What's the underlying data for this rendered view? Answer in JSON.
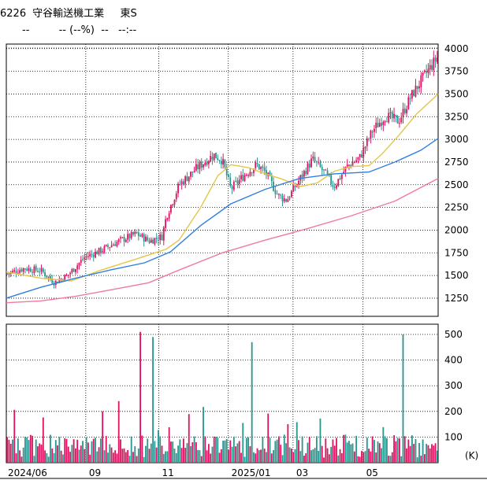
{
  "header": {
    "code": "6226",
    "name": "守谷輸送機工業",
    "market": "東S",
    "price": "--",
    "change": "-- (--%)",
    "volume_text": "--",
    "time": "--:--"
  },
  "chart_data": [
    {
      "type": "candlestick",
      "panel": "price",
      "ylim": [
        1050,
        4050
      ],
      "yticks": [
        1250,
        1500,
        1750,
        2000,
        2250,
        2500,
        2750,
        3000,
        3250,
        3500,
        3750,
        4000
      ],
      "x_categories": [
        "2024/06",
        "09",
        "11",
        "2025/01",
        "03",
        "05"
      ],
      "x_period": [
        "2024/06",
        "2025/06"
      ],
      "up_color": "#dd1560",
      "down_color": "#2a9690",
      "series": [
        {
          "name": "",
          "color": "#e4c64a",
          "points": [
            [
              0,
              1540
            ],
            [
              0.08,
              1470
            ],
            [
              0.15,
              1440
            ],
            [
              0.22,
              1560
            ],
            [
              0.3,
              1680
            ],
            [
              0.37,
              1790
            ],
            [
              0.4,
              1890
            ],
            [
              0.45,
              2250
            ],
            [
              0.49,
              2600
            ],
            [
              0.52,
              2720
            ],
            [
              0.56,
              2690
            ],
            [
              0.6,
              2620
            ],
            [
              0.64,
              2560
            ],
            [
              0.68,
              2480
            ],
            [
              0.72,
              2520
            ],
            [
              0.76,
              2650
            ],
            [
              0.8,
              2700
            ],
            [
              0.84,
              2710
            ],
            [
              0.87,
              2840
            ],
            [
              0.91,
              3050
            ],
            [
              0.95,
              3280
            ],
            [
              1.0,
              3500
            ]
          ]
        },
        {
          "name": "",
          "color": "#2f7fe0",
          "points": [
            [
              0,
              1250
            ],
            [
              0.08,
              1370
            ],
            [
              0.16,
              1470
            ],
            [
              0.24,
              1560
            ],
            [
              0.32,
              1640
            ],
            [
              0.38,
              1760
            ],
            [
              0.45,
              2050
            ],
            [
              0.52,
              2290
            ],
            [
              0.6,
              2450
            ],
            [
              0.68,
              2570
            ],
            [
              0.76,
              2620
            ],
            [
              0.84,
              2640
            ],
            [
              0.9,
              2750
            ],
            [
              0.96,
              2880
            ],
            [
              1.0,
              3010
            ]
          ]
        },
        {
          "name": "",
          "color": "#f07aa0",
          "points": [
            [
              0,
              1200
            ],
            [
              0.08,
              1220
            ],
            [
              0.16,
              1270
            ],
            [
              0.24,
              1340
            ],
            [
              0.33,
              1420
            ],
            [
              0.4,
              1560
            ],
            [
              0.5,
              1750
            ],
            [
              0.6,
              1890
            ],
            [
              0.7,
              2020
            ],
            [
              0.8,
              2160
            ],
            [
              0.9,
              2320
            ],
            [
              1.0,
              2570
            ]
          ]
        }
      ],
      "candles_anchor": [
        [
          0,
          1520
        ],
        [
          0.04,
          1580
        ],
        [
          0.08,
          1550
        ],
        [
          0.11,
          1420
        ],
        [
          0.14,
          1500
        ],
        [
          0.18,
          1700
        ],
        [
          0.22,
          1780
        ],
        [
          0.26,
          1880
        ],
        [
          0.3,
          1960
        ],
        [
          0.33,
          1880
        ],
        [
          0.36,
          1930
        ],
        [
          0.37,
          2150
        ],
        [
          0.4,
          2500
        ],
        [
          0.44,
          2680
        ],
        [
          0.48,
          2830
        ],
        [
          0.5,
          2770
        ],
        [
          0.52,
          2450
        ],
        [
          0.55,
          2600
        ],
        [
          0.58,
          2720
        ],
        [
          0.6,
          2640
        ],
        [
          0.63,
          2380
        ],
        [
          0.65,
          2330
        ],
        [
          0.68,
          2560
        ],
        [
          0.71,
          2780
        ],
        [
          0.74,
          2620
        ],
        [
          0.76,
          2480
        ],
        [
          0.79,
          2700
        ],
        [
          0.82,
          2800
        ],
        [
          0.85,
          3100
        ],
        [
          0.88,
          3260
        ],
        [
          0.91,
          3200
        ],
        [
          0.94,
          3480
        ],
        [
          0.97,
          3700
        ],
        [
          1.0,
          3900
        ]
      ]
    },
    {
      "type": "bar",
      "panel": "volume",
      "unit": "(K)",
      "ylim": [
        0,
        540
      ],
      "yticks": [
        100,
        200,
        300,
        400,
        500
      ],
      "spikes": [
        [
          0.26,
          240
        ],
        [
          0.31,
          510
        ],
        [
          0.34,
          490
        ],
        [
          0.57,
          470
        ],
        [
          0.92,
          500
        ]
      ]
    }
  ]
}
